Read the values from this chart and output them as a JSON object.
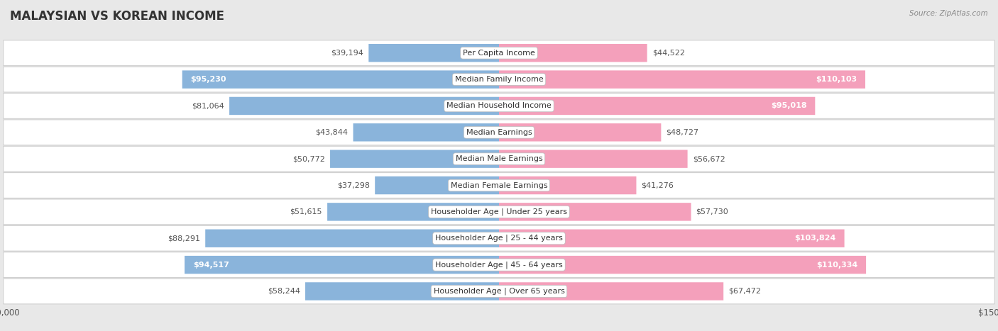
{
  "title": "MALAYSIAN VS KOREAN INCOME",
  "source": "Source: ZipAtlas.com",
  "categories": [
    "Per Capita Income",
    "Median Family Income",
    "Median Household Income",
    "Median Earnings",
    "Median Male Earnings",
    "Median Female Earnings",
    "Householder Age | Under 25 years",
    "Householder Age | 25 - 44 years",
    "Householder Age | 45 - 64 years",
    "Householder Age | Over 65 years"
  ],
  "malaysian_values": [
    39194,
    95230,
    81064,
    43844,
    50772,
    37298,
    51615,
    88291,
    94517,
    58244
  ],
  "korean_values": [
    44522,
    110103,
    95018,
    48727,
    56672,
    41276,
    57730,
    103824,
    110334,
    67472
  ],
  "malaysian_color": "#8ab4db",
  "malaysian_dark_color": "#5b8fc8",
  "korean_color": "#f4a0bb",
  "korean_dark_color": "#e8608a",
  "bg_color": "#ffffff",
  "row_bg_color": "#ffffff",
  "row_border_color": "#d0d0d0",
  "outer_bg_color": "#e8e8e8",
  "max_value": 150000,
  "label_fontsize": 8.0,
  "title_fontsize": 12,
  "axis_label_fontsize": 8.5,
  "legend_fontsize": 8.5,
  "threshold_inside_label": 68000,
  "malaysian_label_colors": [
    "outside",
    "inside",
    "outside",
    "outside",
    "outside",
    "outside",
    "outside",
    "outside",
    "inside",
    "outside"
  ],
  "korean_label_colors": [
    "outside",
    "inside",
    "inside",
    "outside",
    "outside",
    "outside",
    "outside",
    "inside",
    "inside",
    "outside"
  ]
}
